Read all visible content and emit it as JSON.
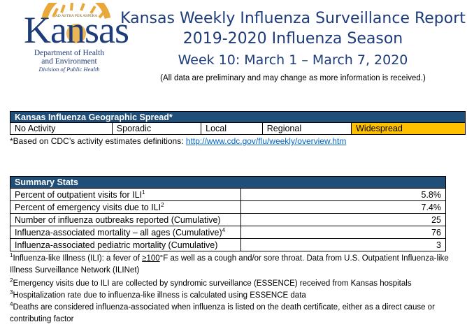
{
  "logo": {
    "motto": "AD ASTRA PER ASPERA",
    "name": "Kansas",
    "dept_line1": "Department of Health",
    "dept_line2": "and Environment",
    "dept_line3": "Division of Public Health",
    "colors": {
      "navy": "#1f3c7a",
      "gold": "#e8a93a"
    }
  },
  "header": {
    "title": "Kansas Weekly Influenza Surveillance Report",
    "season": "2019-2020 Influenza Season",
    "week": "Week 10: March 1 – March 7, 2020",
    "disclaimer": "(All data are preliminary and may change as more information is received.)"
  },
  "spread": {
    "title": "Kansas Influenza Geographic Spread*",
    "levels": [
      "No Activity",
      "Sporadic",
      "Local",
      "Regional",
      "Widespread"
    ],
    "active_level": "Widespread",
    "active_color": "#ffc000",
    "note_text": "*Based on CDC’s activity estimates definitions: ",
    "note_link": "http://www.cdc.gov/flu/weekly/overview.htm"
  },
  "summary": {
    "title": "Summary Stats",
    "rows": [
      {
        "label": "Percent of outpatient visits for ILI",
        "sup": "1",
        "value": "5.8%"
      },
      {
        "label": "Percent of emergency visits due to ILI",
        "sup": "2",
        "value": "7.4%"
      },
      {
        "label": "Number of influenza outbreaks reported (Cumulative)",
        "sup": "",
        "value": "25"
      },
      {
        "label": "Influenza-associated mortality – all ages (Cumulative)",
        "sup": "4",
        "value": "76"
      },
      {
        "label": "Influenza-associated pediatric mortality (Cumulative)",
        "sup": "",
        "value": "3"
      }
    ]
  },
  "footnotes": {
    "f1_sup": "1",
    "f1_a": "Influenza-like Illness (ILI): a fever of ",
    "f1_ge": "≥100",
    "f1_b": "°F as well as a cough and/or sore throat. Data from U.S. Outpatient Influenza-like Illness Surveillance Network (ILINet)",
    "f2_sup": "2",
    "f2": "Emergency visits due to ILI are collected by syndromic surveillance (ESSENCE) received from Kansas hospitals",
    "f3_sup": "3",
    "f3": "Hospitalization rate due to influenza-like illness is calculated using ESSENCE data",
    "f4_sup": "4",
    "f4": "Deaths are considered influenza-associated when influenza is listed on the death certificate, either as a direct cause or contributing factor"
  },
  "header_color": "#1f4e79"
}
